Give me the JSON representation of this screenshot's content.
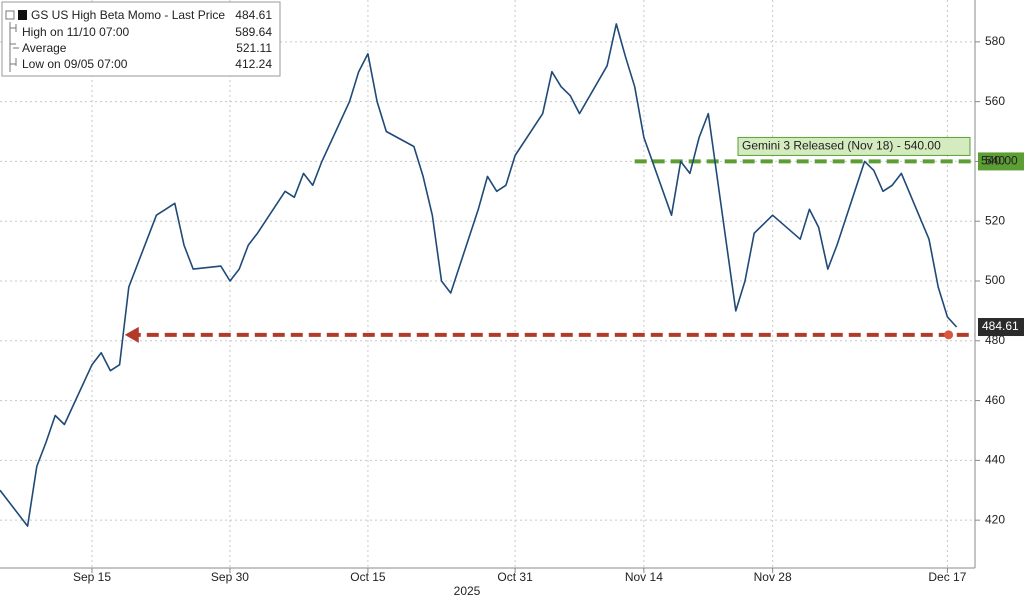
{
  "chart_data": {
    "type": "line",
    "x": [
      "2025-09-05",
      "2025-09-08",
      "2025-09-09",
      "2025-09-10",
      "2025-09-11",
      "2025-09-12",
      "2025-09-15",
      "2025-09-16",
      "2025-09-17",
      "2025-09-18",
      "2025-09-19",
      "2025-09-22",
      "2025-09-23",
      "2025-09-24",
      "2025-09-25",
      "2025-09-26",
      "2025-09-29",
      "2025-09-30",
      "2025-10-01",
      "2025-10-02",
      "2025-10-03",
      "2025-10-06",
      "2025-10-07",
      "2025-10-08",
      "2025-10-09",
      "2025-10-10",
      "2025-10-13",
      "2025-10-14",
      "2025-10-15",
      "2025-10-16",
      "2025-10-17",
      "2025-10-20",
      "2025-10-21",
      "2025-10-22",
      "2025-10-23",
      "2025-10-24",
      "2025-10-27",
      "2025-10-28",
      "2025-10-29",
      "2025-10-30",
      "2025-10-31",
      "2025-11-03",
      "2025-11-04",
      "2025-11-05",
      "2025-11-06",
      "2025-11-07",
      "2025-11-10",
      "2025-11-11",
      "2025-11-12",
      "2025-11-13",
      "2025-11-14",
      "2025-11-17",
      "2025-11-18",
      "2025-11-19",
      "2025-11-20",
      "2025-11-21",
      "2025-11-24",
      "2025-11-25",
      "2025-11-26",
      "2025-11-28",
      "2025-12-01",
      "2025-12-02",
      "2025-12-03",
      "2025-12-04",
      "2025-12-05",
      "2025-12-08",
      "2025-12-09",
      "2025-12-10",
      "2025-12-11",
      "2025-12-12",
      "2025-12-15",
      "2025-12-16",
      "2025-12-17",
      "2025-12-18"
    ],
    "series": [
      {
        "name": "GS US High Beta Momo - Last Price",
        "color": "#1f4a78",
        "values": [
          430,
          418,
          438,
          446,
          455,
          452,
          472,
          476,
          470,
          472,
          498,
          522,
          524,
          526,
          512,
          504,
          505,
          500,
          504,
          512,
          516,
          530,
          528,
          536,
          532,
          540,
          560,
          570,
          576,
          560,
          550,
          545,
          535,
          522,
          500,
          496,
          524,
          535,
          530,
          532,
          542,
          556,
          570,
          565,
          562,
          556,
          572,
          586,
          575,
          565,
          548,
          522,
          540,
          536,
          548,
          556,
          490,
          500,
          516,
          522,
          514,
          524,
          518,
          504,
          512,
          540,
          537,
          530,
          532,
          536,
          514,
          498,
          488,
          484.61
        ]
      }
    ],
    "legend_stats": [
      {
        "label": "High on 11/10 07:00",
        "value": 589.64
      },
      {
        "label": "Average",
        "value": 521.11
      },
      {
        "label": "Low on 09/05 07:00",
        "value": 412.24
      }
    ],
    "last_price": 484.61,
    "xlim": [
      "2025-09-05",
      "2025-12-20"
    ],
    "xticks": [
      {
        "value": "2025-09-15",
        "label": "Sep 15"
      },
      {
        "value": "2025-09-30",
        "label": "Sep 30"
      },
      {
        "value": "2025-10-15",
        "label": "Oct 15"
      },
      {
        "value": "2025-10-31",
        "label": "Oct 31"
      },
      {
        "value": "2025-11-14",
        "label": "Nov 14"
      },
      {
        "value": "2025-11-28",
        "label": "Nov 28"
      },
      {
        "value": "2025-12-17",
        "label": "Dec 17"
      }
    ],
    "x_year_label": "2025",
    "ylim": [
      404,
      594
    ],
    "yticks": [
      420,
      440,
      460,
      480,
      500,
      520,
      540,
      560,
      580
    ],
    "grid": true,
    "annotations": [
      {
        "text": "Gemini 3 Released (Nov 18) - 540.00",
        "value": 540,
        "value_label": "540.00",
        "start": "2025-11-13",
        "color": "#5c9e34"
      },
      {
        "value": 482,
        "start": "2025-09-19",
        "color": "#b23a2a"
      }
    ]
  }
}
